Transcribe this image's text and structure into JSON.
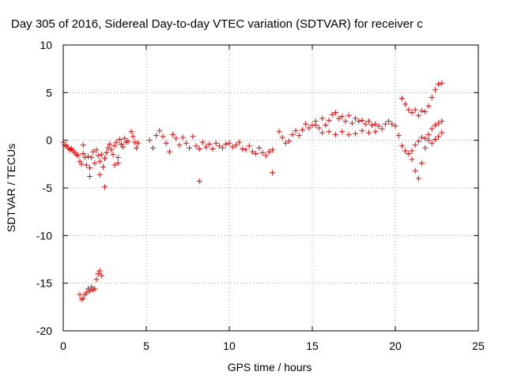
{
  "chart_data": {
    "type": "scatter",
    "title": "Day 305 of 2016, Sidereal Day-to-day VTEC variation (SDTVAR) for receiver c",
    "xlabel": "GPS time / hours",
    "ylabel": "SDTVAR / TECUs",
    "xlim": [
      0,
      25
    ],
    "ylim": [
      -20,
      10
    ],
    "xticks": [
      0,
      5,
      10,
      15,
      20,
      25
    ],
    "yticks": [
      10,
      5,
      0,
      -5,
      -10,
      -15,
      -20
    ],
    "grid": true,
    "marker": "plus",
    "color": "#ff0000",
    "series": [
      {
        "name": "SDTVAR",
        "x": [
          0.0,
          0.1,
          0.2,
          0.3,
          0.4,
          0.5,
          0.6,
          0.7,
          0.8,
          0.9,
          1.0,
          1.1,
          1.2,
          1.3,
          1.4,
          1.5,
          1.6,
          1.7,
          1.8,
          1.9,
          2.0,
          2.1,
          2.2,
          2.3,
          2.4,
          2.5,
          2.6,
          2.7,
          2.8,
          2.9,
          3.0,
          3.1,
          3.2,
          3.3,
          3.4,
          3.5,
          3.6,
          3.7,
          3.8,
          3.9,
          4.1,
          4.2,
          4.3,
          4.4,
          4.5,
          5.2,
          5.4,
          5.6,
          5.8,
          6.0,
          6.2,
          6.4,
          6.6,
          6.8,
          7.0,
          7.2,
          7.4,
          7.6,
          7.8,
          8.0,
          8.2,
          8.4,
          8.6,
          8.8,
          9.0,
          9.2,
          9.4,
          9.6,
          9.8,
          10.0,
          10.2,
          10.4,
          10.6,
          10.8,
          11.0,
          11.2,
          11.4,
          11.6,
          11.8,
          12.0,
          12.2,
          12.4,
          12.6,
          13.0,
          13.2,
          13.4,
          13.6,
          13.8,
          14.0,
          14.2,
          14.4,
          14.6,
          14.8,
          15.0,
          15.2,
          15.4,
          15.6,
          15.8,
          16.0,
          16.2,
          16.4,
          16.6,
          16.8,
          17.0,
          17.2,
          17.4,
          17.6,
          17.8,
          18.0,
          18.2,
          18.4,
          18.6,
          18.8,
          19.0,
          19.2,
          19.4,
          19.6,
          19.8,
          20.0,
          20.2,
          20.4,
          20.6,
          20.8,
          21.0,
          21.2,
          21.4,
          21.6,
          21.8,
          22.0,
          22.2,
          22.4,
          22.6,
          22.8,
          20.4,
          20.6,
          20.8,
          21.0,
          21.2,
          21.4,
          21.6,
          21.8,
          22.0,
          22.2,
          22.4,
          22.6,
          22.8,
          21.0,
          21.2,
          21.4,
          21.6,
          21.8,
          22.0,
          22.2,
          22.4,
          22.6,
          22.8,
          15.2,
          15.6,
          16.0,
          16.4,
          16.8,
          17.2,
          17.6,
          18.0,
          18.4,
          18.8,
          1.0,
          1.1,
          1.2,
          1.3,
          1.4,
          1.5,
          1.6,
          1.7,
          1.8,
          1.9,
          2.0,
          2.1,
          2.2,
          2.3,
          1.2,
          1.6,
          2.2,
          2.5,
          8.2,
          12.6,
          3.1,
          3.3
        ],
        "y": [
          -0.2,
          -0.5,
          -0.6,
          -0.8,
          -1.0,
          -0.9,
          -1.1,
          -1.3,
          -1.5,
          -1.6,
          -2.2,
          -2.5,
          -1.4,
          -1.8,
          -2.6,
          -1.7,
          -2.9,
          -1.8,
          -1.2,
          -2.4,
          -1.0,
          -1.6,
          -2.2,
          -1.5,
          -2.8,
          -1.9,
          -1.3,
          -0.8,
          -0.4,
          -1.0,
          -1.5,
          -0.6,
          -0.2,
          -1.8,
          0.1,
          -0.4,
          -0.7,
          0.2,
          -0.2,
          -0.1,
          0.9,
          0.4,
          -0.2,
          -0.8,
          -0.3,
          0.0,
          -0.8,
          0.5,
          1.0,
          0.4,
          -0.3,
          -1.2,
          0.6,
          0.2,
          -0.5,
          0.3,
          -0.3,
          -0.8,
          0.4,
          -0.6,
          -0.9,
          -0.2,
          -0.7,
          -0.4,
          -0.9,
          -0.3,
          -0.6,
          -0.8,
          -0.4,
          -0.3,
          -0.7,
          -0.5,
          -0.2,
          -0.9,
          -1.0,
          -0.6,
          -1.2,
          -1.4,
          -0.8,
          -1.3,
          -1.6,
          -1.2,
          -1.0,
          0.9,
          0.3,
          -0.3,
          -0.1,
          0.6,
          1.0,
          0.5,
          1.1,
          1.7,
          1.3,
          1.6,
          2.0,
          1.3,
          2.3,
          1.6,
          2.1,
          2.7,
          2.9,
          2.3,
          2.5,
          2.0,
          2.6,
          1.8,
          2.3,
          2.0,
          2.1,
          1.7,
          2.0,
          1.6,
          1.7,
          1.5,
          1.2,
          1.7,
          2.0,
          1.7,
          1.5,
          0.5,
          -0.6,
          -1.1,
          -1.4,
          -1.1,
          -0.5,
          -0.1,
          0.3,
          0.2,
          0.0,
          -0.3,
          0.1,
          0.4,
          0.8,
          4.4,
          3.8,
          3.2,
          2.9,
          3.2,
          2.6,
          3.1,
          3.0,
          3.6,
          4.5,
          5.3,
          5.9,
          6.0,
          -2.0,
          -3.2,
          -4.0,
          -2.4,
          -0.8,
          0.6,
          1.2,
          1.6,
          1.8,
          2.0,
          1.6,
          0.8,
          0.9,
          0.6,
          0.9,
          0.6,
          0.7,
          1.0,
          0.8,
          0.9,
          -16.2,
          -16.7,
          -16.6,
          -16.2,
          -16.0,
          -15.6,
          -15.8,
          -15.4,
          -15.7,
          -15.6,
          -14.6,
          -14.0,
          -13.7,
          -14.2,
          -0.5,
          -3.8,
          -3.6,
          -4.9,
          -4.3,
          -3.4,
          -2.6,
          -2.4
        ]
      }
    ]
  }
}
